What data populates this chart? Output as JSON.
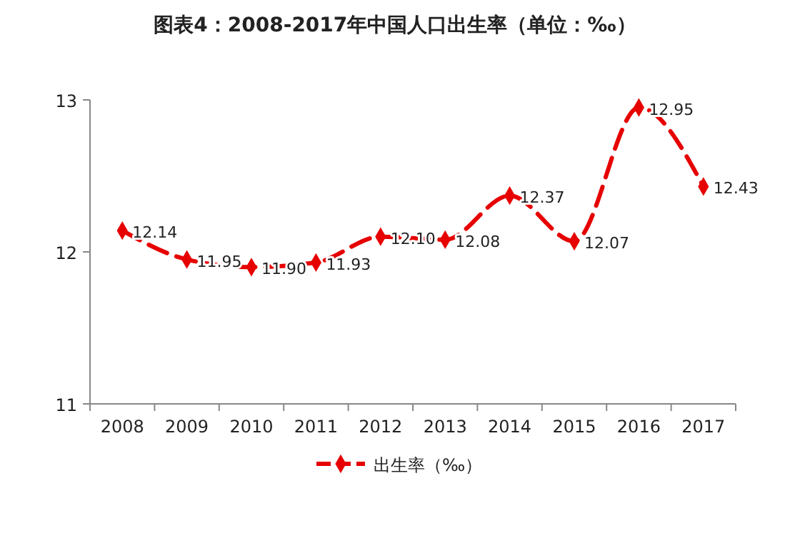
{
  "chart_data": {
    "type": "line",
    "title": "图表4：2008-2017年中国人口出生率（单位：‰）",
    "categories": [
      "2008",
      "2009",
      "2010",
      "2011",
      "2012",
      "2013",
      "2014",
      "2015",
      "2016",
      "2017"
    ],
    "series": [
      {
        "name": "出生率（‰）",
        "color": "#e60000",
        "values": [
          12.14,
          11.95,
          11.9,
          11.93,
          12.1,
          12.08,
          12.37,
          12.07,
          12.95,
          12.43
        ],
        "value_labels": [
          "12.14",
          "11.95",
          "11.90",
          "11.93",
          "12.10",
          "12.08",
          "12.37",
          "12.07",
          "12.95",
          "12.43"
        ]
      }
    ],
    "ylim": [
      11,
      13
    ],
    "yticks": [
      11,
      12,
      13
    ],
    "grid": false,
    "legend": "bottom",
    "marker": "diamond",
    "line_style": "dashed"
  }
}
